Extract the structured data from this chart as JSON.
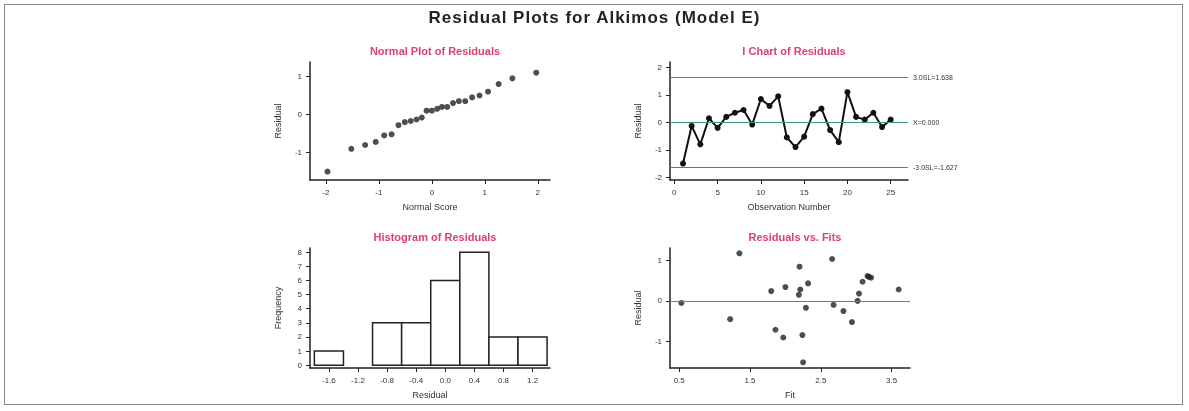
{
  "chart_data": [
    {
      "type": "scatter",
      "title": "Normal Plot of Residuals",
      "xlabel": "Normal Score",
      "ylabel": "Residual",
      "annotations": [
        "Residual Plots for Alkimos (Model E)"
      ],
      "marker": "circle",
      "grid": false,
      "x": [
        -1.97,
        -1.52,
        -1.26,
        -1.06,
        -0.9,
        -0.76,
        -0.63,
        -0.51,
        -0.4,
        -0.29,
        -0.19,
        -0.1,
        0,
        0.1,
        0.19,
        0.29,
        0.4,
        0.51,
        0.63,
        0.76,
        0.9,
        1.06,
        1.26,
        1.52,
        1.97
      ],
      "series": [
        {
          "color": "#222222",
          "values": [
            -1.5,
            -0.9,
            -0.8,
            -0.72,
            -0.55,
            -0.52,
            -0.28,
            -0.2,
            -0.17,
            -0.13,
            -0.08,
            0.1,
            0.1,
            0.15,
            0.2,
            0.2,
            0.3,
            0.35,
            0.35,
            0.45,
            0.5,
            0.6,
            0.8,
            0.95,
            1.1
          ]
        }
      ],
      "xlim": [
        -2.3,
        2.23
      ],
      "xticks": [
        -2,
        -1,
        0,
        1,
        2
      ],
      "ylim": [
        -1.72,
        1.38
      ],
      "yticks": [
        -1,
        0,
        1
      ]
    },
    {
      "type": "line",
      "title": "I Chart of Residuals",
      "xlabel": "Observation Number",
      "ylabel": "Residual",
      "marker": "circle",
      "line_style": "solid",
      "grid": false,
      "x": [
        1,
        2,
        3,
        4,
        5,
        6,
        7,
        8,
        9,
        10,
        11,
        12,
        13,
        14,
        15,
        16,
        17,
        18,
        19,
        20,
        21,
        22,
        23,
        24,
        25
      ],
      "series": [
        {
          "color": "#111111",
          "values": [
            -1.5,
            -0.13,
            -0.8,
            0.15,
            -0.2,
            0.2,
            0.35,
            0.45,
            -0.08,
            0.85,
            0.6,
            0.95,
            -0.55,
            -0.9,
            -0.52,
            0.3,
            0.5,
            -0.28,
            -0.72,
            1.1,
            0.2,
            0.1,
            0.35,
            -0.17,
            0.1
          ]
        }
      ],
      "ref_lines": [
        {
          "axis": "y",
          "value": 1.638,
          "label": "3.0SL=1.638",
          "color": "#e0406a"
        },
        {
          "axis": "y",
          "value": 0.0,
          "label": "X=0.000",
          "color": "#3a9a6a"
        },
        {
          "axis": "y",
          "value": -1.627,
          "label": "-3.0SL=-1.627",
          "color": "#e0406a"
        }
      ],
      "xlim": [
        -0.5,
        27
      ],
      "xticks": [
        0,
        5,
        10,
        15,
        20,
        25
      ],
      "ylim": [
        -2.1,
        2.2
      ],
      "yticks": [
        -2,
        -1,
        0,
        1,
        2
      ]
    },
    {
      "type": "histogram",
      "title": "Histogram of Residuals",
      "xlabel": "Residual",
      "ylabel": "Frequency",
      "grid": false,
      "color": "#ffffff",
      "bins": [
        -1.8,
        -1.4,
        -1.0,
        -0.6,
        -0.2,
        0.2,
        0.6,
        1.0,
        1.4
      ],
      "values": [
        1,
        0,
        3,
        3,
        6,
        8,
        2,
        2
      ],
      "xlim": [
        -1.86,
        1.44
      ],
      "xticks": [
        {
          "value": -1.6,
          "label": "-1.6"
        },
        {
          "value": -1.2,
          "label": "-1.2"
        },
        {
          "value": -0.8,
          "label": "-0.8"
        },
        {
          "value": -0.4,
          "label": "-0.4"
        },
        {
          "value": 0,
          "label": "0.0"
        },
        {
          "value": 0.4,
          "label": "0.4"
        },
        {
          "value": 0.8,
          "label": "0.8"
        },
        {
          "value": 1.2,
          "label": "1.2"
        }
      ],
      "ylim": [
        -0.2,
        8.3
      ],
      "yticks": [
        0,
        1,
        2,
        3,
        4,
        5,
        6,
        7,
        8
      ]
    },
    {
      "type": "scatter",
      "title": "Residuals vs. Fits",
      "xlabel": "Fit",
      "ylabel": "Residual",
      "marker": "circle",
      "grid": false,
      "x": [
        0.53,
        1.22,
        1.35,
        1.86,
        1.97,
        1.8,
        2.0,
        2.2,
        2.21,
        2.19,
        2.24,
        2.25,
        2.29,
        2.32,
        2.66,
        2.68,
        2.82,
        2.94,
        3.02,
        3.04,
        3.09,
        3.16,
        3.18,
        3.21,
        3.6
      ],
      "series": [
        {
          "color": "#222222",
          "values": [
            -0.05,
            -0.45,
            1.17,
            -0.71,
            -0.9,
            0.24,
            0.34,
            0.84,
            0.28,
            0.15,
            -0.84,
            -1.51,
            -0.17,
            0.43,
            1.03,
            -0.1,
            -0.25,
            -0.52,
            0.0,
            0.18,
            0.47,
            0.61,
            0.59,
            0.57,
            0.28
          ]
        }
      ],
      "ref_lines": [
        {
          "axis": "y",
          "value": 0,
          "color": "#e0406a"
        }
      ],
      "xlim": [
        0.37,
        3.76
      ],
      "xticks": [
        0.5,
        1.5,
        2.5,
        3.5
      ],
      "ylim": [
        -1.65,
        1.3
      ],
      "yticks": [
        -1,
        0,
        1
      ]
    }
  ]
}
